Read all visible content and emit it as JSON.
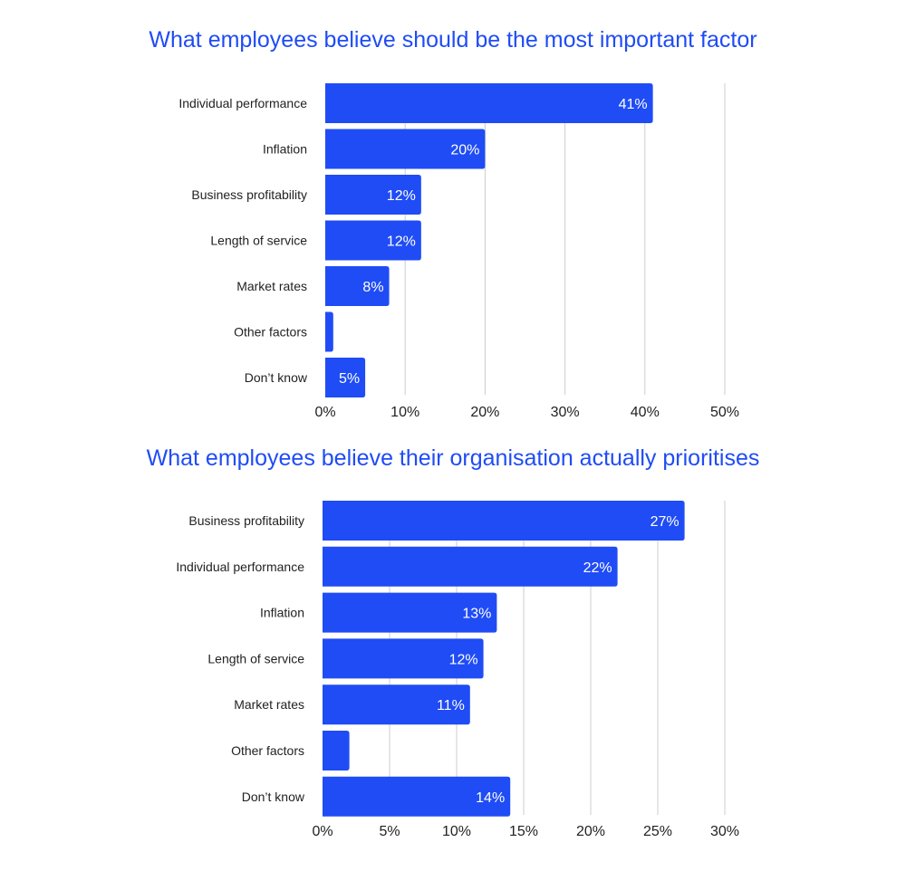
{
  "colors": {
    "title": "#1f4cf5",
    "bar": "#1f4cf5",
    "bar_label": "#ffffff",
    "grid": "#cccccc",
    "text": "#222222"
  },
  "chart_data": [
    {
      "type": "bar",
      "orientation": "horizontal",
      "title": "What employees believe should be the most important factor",
      "categories": [
        "Individual performance",
        "Inflation",
        "Business profitability",
        "Length of service",
        "Market rates",
        "Other factors",
        "Don’t know"
      ],
      "values": [
        41,
        20,
        12,
        12,
        8,
        1,
        5
      ],
      "data_labels": [
        "41%",
        "20%",
        "12%",
        "12%",
        "8%",
        "",
        "5%"
      ],
      "xlim": [
        0,
        50
      ],
      "ticks": [
        0,
        10,
        20,
        30,
        40,
        50
      ],
      "tick_labels": [
        "0%",
        "10%",
        "20%",
        "30%",
        "40%",
        "50%"
      ],
      "grid": true
    },
    {
      "type": "bar",
      "orientation": "horizontal",
      "title": "What employees believe their organisation actually prioritises",
      "categories": [
        "Business profitability",
        "Individual performance",
        "Inflation",
        "Length of service",
        "Market rates",
        "Other factors",
        "Don’t know"
      ],
      "values": [
        27,
        22,
        13,
        12,
        11,
        2,
        14
      ],
      "data_labels": [
        "27%",
        "22%",
        "13%",
        "12%",
        "11%",
        "",
        "14%"
      ],
      "xlim": [
        0,
        30
      ],
      "ticks": [
        0,
        5,
        10,
        15,
        20,
        25,
        30
      ],
      "tick_labels": [
        "0%",
        "5%",
        "10%",
        "15%",
        "20%",
        "25%",
        "30%"
      ],
      "grid": true
    }
  ]
}
